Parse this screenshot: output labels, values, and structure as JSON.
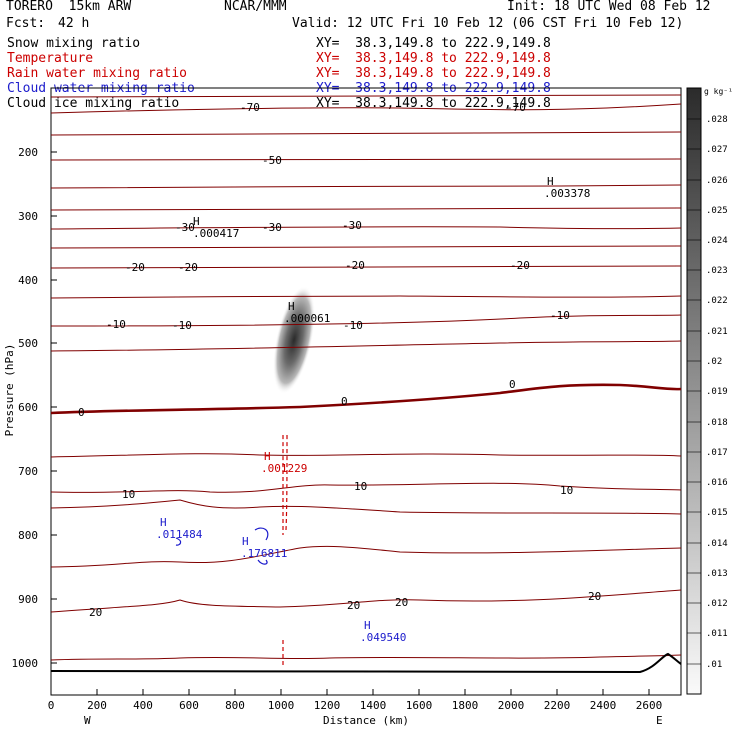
{
  "header": {
    "model": "TORERO  15km ARW",
    "center": "NCAR/MMM",
    "init": "Init: 18 UTC Wed 08 Feb 12",
    "fcst_label": "Fcst:",
    "fcst_value": "42 h",
    "valid": "Valid: 12 UTC Fri 10 Feb 12 (06 CST Fri 10 Feb 12)"
  },
  "legend": [
    {
      "name": "Snow mixing ratio",
      "xy": "XY=  38.3,149.8 to 222.9,149.8",
      "color": "#000000"
    },
    {
      "name": "Temperature",
      "xy": "XY=  38.3,149.8 to 222.9,149.8",
      "color": "#cc0000"
    },
    {
      "name": "Rain water mixing ratio",
      "xy": "XY=  38.3,149.8 to 222.9,149.8",
      "color": "#cc0000"
    },
    {
      "name": "Cloud water mixing ratio",
      "xy": "XY=  38.3,149.8 to 222.9,149.8",
      "color": "#1c1ccc"
    },
    {
      "name": "Cloud ice mixing ratio",
      "xy": "XY=  38.3,149.8 to 222.9,149.8",
      "color": "#000000"
    }
  ],
  "axes": {
    "ylabel": "Pressure (hPa)",
    "xlabel": "Distance (km)",
    "west": "W",
    "east": "E",
    "yticks": [
      "200",
      "300",
      "400",
      "500",
      "600",
      "700",
      "800",
      "900",
      "1000"
    ],
    "xticks": [
      "0",
      "200",
      "400",
      "600",
      "800",
      "1000",
      "1200",
      "1400",
      "1600",
      "1800",
      "2000",
      "2200",
      "2400",
      "2600"
    ]
  },
  "colorbar": {
    "unit": "g kg⁻¹",
    "labels": [
      ".028",
      ".027",
      ".026",
      ".025",
      ".024",
      ".023",
      ".022",
      ".021",
      ".02",
      ".019",
      ".018",
      ".017",
      ".016",
      ".015",
      ".014",
      ".013",
      ".012",
      ".011",
      ".01"
    ]
  },
  "annotations": {
    "max_labels": [
      {
        "mark": "H",
        "value": ".000417"
      },
      {
        "mark": "H",
        "value": ".000061"
      },
      {
        "mark": "H",
        "value": ".003378"
      },
      {
        "mark": "H",
        "value": ".001229"
      },
      {
        "mark": "H",
        "value": ".011484"
      },
      {
        "mark": "H",
        "value": ".176811"
      },
      {
        "mark": "H",
        "value": ".049540"
      }
    ],
    "contour_labels": [
      "-70",
      "-70",
      "-50",
      "-30",
      "-30",
      "-30",
      "-20",
      "-20",
      "-20",
      "-20",
      "-10",
      "-10",
      "-10",
      "-10",
      "0",
      "0",
      "0",
      "10",
      "10",
      "10",
      "20",
      "20",
      "20",
      "20"
    ]
  },
  "colors": {
    "temperature": "#800000",
    "rain": "#cc0000",
    "cloud_water": "#1c1ccc",
    "snow": "#000000"
  }
}
